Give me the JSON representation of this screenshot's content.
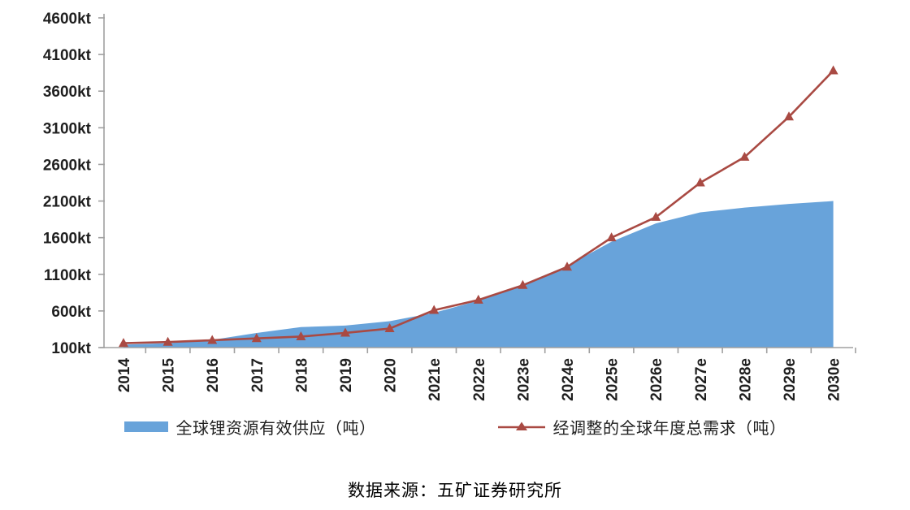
{
  "chart_data": {
    "type": "area",
    "title": "",
    "categories": [
      "2014",
      "2015",
      "2016",
      "2017",
      "2018",
      "2019",
      "2020",
      "2021e",
      "2022e",
      "2023e",
      "2024e",
      "2025e",
      "2026e",
      "2027e",
      "2028e",
      "2029e",
      "2030e"
    ],
    "series": [
      {
        "name": "全球锂资源有效供应（吨）",
        "type": "area",
        "color": "#68A3DA",
        "values": [
          140,
          160,
          205,
          300,
          380,
          400,
          460,
          575,
          740,
          965,
          1215,
          1545,
          1795,
          1945,
          2010,
          2060,
          2100
        ]
      },
      {
        "name": "经调整的全球年度总需求（吨）",
        "type": "line",
        "marker": "triangle",
        "color": "#A94A43",
        "values": [
          160,
          175,
          200,
          225,
          250,
          300,
          360,
          610,
          750,
          950,
          1200,
          1600,
          1880,
          2350,
          2700,
          3250,
          3880
        ]
      }
    ],
    "xlabel": "",
    "ylabel": "",
    "unit": "kt",
    "ylim": [
      100,
      4600
    ],
    "y_ticks": [
      {
        "v": 100,
        "label": "100kt"
      },
      {
        "v": 600,
        "label": "600kt"
      },
      {
        "v": 1100,
        "label": "1100kt"
      },
      {
        "v": 1600,
        "label": "1600kt"
      },
      {
        "v": 2100,
        "label": "2100kt"
      },
      {
        "v": 2600,
        "label": "2600kt"
      },
      {
        "v": 3100,
        "label": "3100kt"
      },
      {
        "v": 3600,
        "label": "3600kt"
      },
      {
        "v": 4100,
        "label": "4100kt"
      },
      {
        "v": 4600,
        "label": "4600kt"
      }
    ],
    "grid": false,
    "legend_position": "bottom"
  },
  "source": {
    "text": "数据来源：五矿证券研究所"
  },
  "colors": {
    "axis": "#A0A0A0",
    "text": "#1F1F1F",
    "supply": "#68A3DA",
    "demand": "#A94A43",
    "background": "#FFFFFF"
  }
}
